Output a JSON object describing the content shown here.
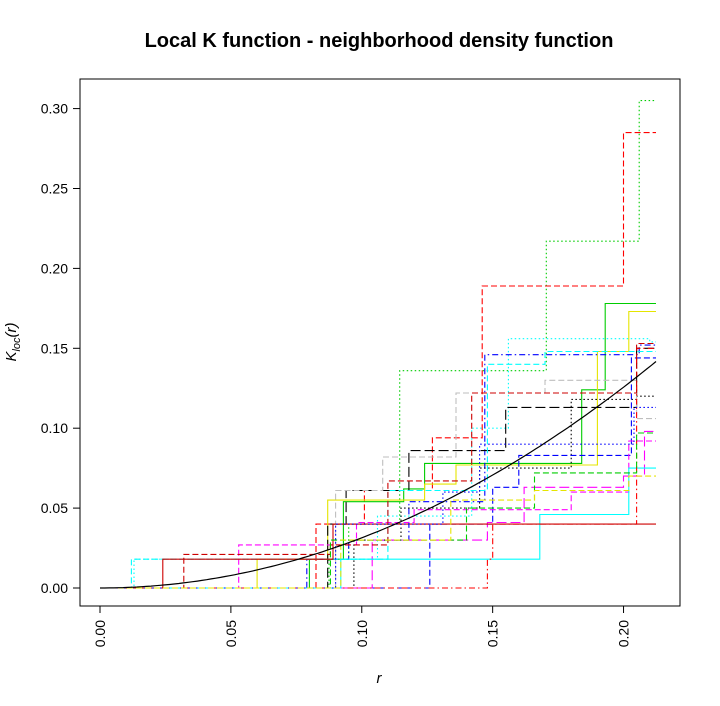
{
  "chart_data": {
    "type": "line",
    "title": "Local K function - neighborhood density function",
    "xlabel": "r",
    "ylabel_main": "K",
    "ylabel_sub": "loc",
    "ylabel_arg": "(r)",
    "xlim": [
      0,
      0.2124
    ],
    "ylim": [
      0,
      0.306
    ],
    "x_ticks": [
      0,
      0.05,
      0.1,
      0.15,
      0.2
    ],
    "x_tick_labels": [
      "0.00",
      "0.05",
      "0.10",
      "0.15",
      "0.20"
    ],
    "y_ticks": [
      0,
      0.05,
      0.1,
      0.15,
      0.2,
      0.25,
      0.3
    ],
    "y_tick_labels": [
      "0.00",
      "0.05",
      "0.10",
      "0.15",
      "0.20",
      "0.25",
      "0.30"
    ],
    "grid": false,
    "reference_curve": {
      "formula": "pi*r^2",
      "color": "#000000",
      "dash": "solid"
    },
    "series": [
      {
        "color": "#00CD00",
        "dash": "dotted",
        "steps": [
          [
            0,
            0
          ],
          [
            0.0875,
            0.018
          ],
          [
            0.095,
            0.04
          ],
          [
            0.1145,
            0.136
          ],
          [
            0.1705,
            0.217
          ],
          [
            0.206,
            0.305
          ]
        ]
      },
      {
        "color": "#FF0000",
        "dash": "dashed",
        "steps": [
          [
            0,
            0
          ],
          [
            0.0825,
            0.04
          ],
          [
            0.101,
            0.061
          ],
          [
            0.127,
            0.094
          ],
          [
            0.146,
            0.189
          ],
          [
            0.2,
            0.285
          ]
        ]
      },
      {
        "color": "#00CD00",
        "dash": "solid",
        "steps": [
          [
            0,
            0
          ],
          [
            0.08,
            0.018
          ],
          [
            0.093,
            0.054
          ],
          [
            0.116,
            0.062
          ],
          [
            0.124,
            0.078
          ],
          [
            0.184,
            0.124
          ],
          [
            0.193,
            0.178
          ]
        ]
      },
      {
        "color": "#E5E500",
        "dash": "solid",
        "steps": [
          [
            0,
            0
          ],
          [
            0.06,
            0.018
          ],
          [
            0.087,
            0.055
          ],
          [
            0.124,
            0.065
          ],
          [
            0.136,
            0.077
          ],
          [
            0.19,
            0.148
          ],
          [
            0.202,
            0.173
          ]
        ]
      },
      {
        "color": "#00FFFF",
        "dash": "dotted",
        "steps": [
          [
            0,
            0
          ],
          [
            0.013,
            0.018
          ],
          [
            0.106,
            0.045
          ],
          [
            0.142,
            0.1
          ],
          [
            0.156,
            0.156
          ],
          [
            0.21,
            0.154
          ]
        ]
      },
      {
        "color": "#0000FF",
        "dash": "dotdash",
        "steps": [
          [
            0,
            0
          ],
          [
            0.079,
            0.018
          ],
          [
            0.095,
            0.03
          ],
          [
            0.118,
            0.054
          ],
          [
            0.147,
            0.146
          ],
          [
            0.206,
            0.152
          ]
        ]
      },
      {
        "color": "#000000",
        "dash": "longdash",
        "steps": [
          [
            0,
            0
          ],
          [
            0.087,
            0.04
          ],
          [
            0.094,
            0.061
          ],
          [
            0.118,
            0.086
          ],
          [
            0.155,
            0.113
          ],
          [
            0.205,
            0.15
          ]
        ]
      },
      {
        "color": "#000000",
        "dash": "dotted",
        "steps": [
          [
            0,
            0
          ],
          [
            0.097,
            0.03
          ],
          [
            0.115,
            0.05
          ],
          [
            0.145,
            0.075
          ],
          [
            0.18,
            0.118
          ],
          [
            0.205,
            0.12
          ]
        ]
      },
      {
        "color": "#00FFFF",
        "dash": "dashed",
        "steps": [
          [
            0,
            0
          ],
          [
            0.012,
            0.018
          ],
          [
            0.11,
            0.061
          ],
          [
            0.148,
            0.14
          ],
          [
            0.17,
            0.148
          ]
        ]
      },
      {
        "color": "#BEBEBE",
        "dash": "dashed",
        "steps": [
          [
            0,
            0
          ],
          [
            0.09,
            0.061
          ],
          [
            0.108,
            0.082
          ],
          [
            0.136,
            0.122
          ],
          [
            0.17,
            0.13
          ],
          [
            0.205,
            0.106
          ]
        ]
      },
      {
        "color": "#0000FF",
        "dash": "dashed",
        "steps": [
          [
            0,
            0
          ],
          [
            0.126,
            0.04
          ],
          [
            0.15,
            0.063
          ],
          [
            0.16,
            0.083
          ],
          [
            0.197,
            0.083
          ],
          [
            0.203,
            0.144
          ]
        ]
      },
      {
        "color": "#FF00FF",
        "dash": "dashed",
        "steps": [
          [
            0,
            0
          ],
          [
            0.053,
            0.027
          ],
          [
            0.098,
            0.041
          ],
          [
            0.12,
            0.049
          ],
          [
            0.18,
            0.06
          ],
          [
            0.202,
            0.092
          ]
        ]
      },
      {
        "color": "#FF00FF",
        "dash": "longdash",
        "steps": [
          [
            0,
            0
          ],
          [
            0.104,
            0.03
          ],
          [
            0.148,
            0.041
          ],
          [
            0.162,
            0.063
          ],
          [
            0.2,
            0.07
          ],
          [
            0.208,
            0.098
          ]
        ]
      },
      {
        "color": "#00FFFF",
        "dash": "solid",
        "steps": [
          [
            0,
            0
          ],
          [
            0.092,
            0.018
          ],
          [
            0.168,
            0.046
          ],
          [
            0.202,
            0.075
          ]
        ]
      },
      {
        "color": "#FF0000",
        "dash": "dotdash",
        "steps": [
          [
            0,
            0
          ],
          [
            0.148,
            0.018
          ],
          [
            0.15,
            0.04
          ],
          [
            0.198,
            0.04
          ],
          [
            0.205,
            0.15
          ]
        ]
      },
      {
        "color": "#CD0000",
        "dash": "solid",
        "steps": [
          [
            0,
            0
          ],
          [
            0.024,
            0.018
          ],
          [
            0.082,
            0.018
          ],
          [
            0.089,
            0.04
          ]
        ]
      },
      {
        "color": "#CD0000",
        "dash": "dashed",
        "steps": [
          [
            0,
            0
          ],
          [
            0.032,
            0.021
          ],
          [
            0.088,
            0.027
          ],
          [
            0.11,
            0.067
          ],
          [
            0.142,
            0.122
          ],
          [
            0.198,
            0.122
          ],
          [
            0.205,
            0.153
          ]
        ]
      },
      {
        "color": "#00CD00",
        "dash": "dashed",
        "steps": [
          [
            0,
            0
          ],
          [
            0.088,
            0.03
          ],
          [
            0.14,
            0.05
          ],
          [
            0.166,
            0.072
          ],
          [
            0.205,
            0.097
          ]
        ]
      },
      {
        "color": "#0000FF",
        "dash": "dotted",
        "steps": [
          [
            0,
            0
          ],
          [
            0.09,
            0.04
          ],
          [
            0.131,
            0.06
          ],
          [
            0.145,
            0.09
          ],
          [
            0.204,
            0.113
          ]
        ]
      },
      {
        "color": "#E5E500",
        "dash": "dashed",
        "steps": [
          [
            0,
            0
          ],
          [
            0.092,
            0.03
          ],
          [
            0.134,
            0.055
          ],
          [
            0.166,
            0.061
          ],
          [
            0.202,
            0.07
          ]
        ]
      }
    ]
  }
}
